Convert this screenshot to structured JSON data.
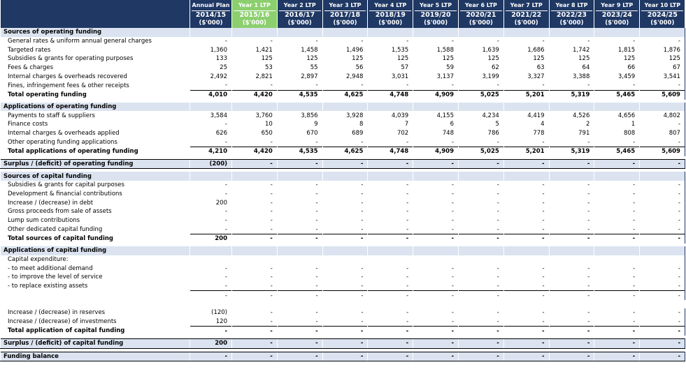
{
  "header": {
    "columns": [
      {
        "top": "Annual Plan",
        "year": "2014/15",
        "unit": "($'000)"
      },
      {
        "top": "Year 1 LTP",
        "year": "2015/16",
        "unit": "($'000)"
      },
      {
        "top": "Year 2 LTP",
        "year": "2016/17",
        "unit": "($'000)"
      },
      {
        "top": "Year 3 LTP",
        "year": "2017/18",
        "unit": "($'000)"
      },
      {
        "top": "Year 4 LTP",
        "year": "2018/19",
        "unit": "($'000)"
      },
      {
        "top": "Year 5 LTP",
        "year": "2019/20",
        "unit": "($'000)"
      },
      {
        "top": "Year 6 LTP",
        "year": "2020/21",
        "unit": "($'000)"
      },
      {
        "top": "Year 7 LTP",
        "year": "2021/22",
        "unit": "($'000)"
      },
      {
        "top": "Year 8 LTP",
        "year": "2022/23",
        "unit": "($'000)"
      },
      {
        "top": "Year 9 LTP",
        "year": "2023/24",
        "unit": "($'000)"
      },
      {
        "top": "Year 10 LTP",
        "year": "2024/25",
        "unit": "($'000)"
      }
    ]
  },
  "rows": [
    {
      "type": "section",
      "label": "Sources of operating funding"
    },
    {
      "type": "item",
      "label": "General rates & uniform annual general charges",
      "values": [
        "-",
        "-",
        "-",
        "-",
        "-",
        "-",
        "-",
        "-",
        "-",
        "-",
        "-"
      ]
    },
    {
      "type": "item",
      "label": "Targeted rates",
      "values": [
        "1,360",
        "1,421",
        "1,458",
        "1,496",
        "1,535",
        "1,588",
        "1,639",
        "1,686",
        "1,742",
        "1,815",
        "1,876"
      ]
    },
    {
      "type": "item",
      "label": "Subsidies & grants for operating purposes",
      "values": [
        "133",
        "125",
        "125",
        "125",
        "125",
        "125",
        "125",
        "125",
        "125",
        "125",
        "125"
      ]
    },
    {
      "type": "item",
      "label": "Fees & charges",
      "values": [
        "25",
        "53",
        "55",
        "56",
        "57",
        "59",
        "62",
        "63",
        "64",
        "66",
        "67"
      ]
    },
    {
      "type": "item",
      "label": "Internal charges & overheads recovered",
      "values": [
        "2,492",
        "2,821",
        "2,897",
        "2,948",
        "3,031",
        "3,137",
        "3,199",
        "3,327",
        "3,388",
        "3,459",
        "3,541"
      ]
    },
    {
      "type": "item",
      "label": "Fines, infringement fees & other receipts",
      "values": [
        "-",
        "-",
        "-",
        "-",
        "-",
        "-",
        "-",
        "-",
        "-",
        "-",
        "-"
      ]
    },
    {
      "type": "total",
      "label": "Total operating funding",
      "values": [
        "4,010",
        "4,420",
        "4,535",
        "4,625",
        "4,748",
        "4,909",
        "5,025",
        "5,201",
        "5,319",
        "5,465",
        "5,609"
      ]
    },
    {
      "type": "spacer"
    },
    {
      "type": "section",
      "label": "Applications of operating funding"
    },
    {
      "type": "item",
      "label": "Payments to staff & suppliers",
      "values": [
        "3,584",
        "3,760",
        "3,856",
        "3,928",
        "4,039",
        "4,155",
        "4,234",
        "4,419",
        "4,526",
        "4,656",
        "4,802"
      ]
    },
    {
      "type": "item",
      "label": "Finance costs",
      "values": [
        "-",
        "10",
        "9",
        "8",
        "7",
        "6",
        "5",
        "4",
        "2",
        "1",
        "-"
      ]
    },
    {
      "type": "item",
      "label": "Internal charges & overheads applied",
      "values": [
        "626",
        "650",
        "670",
        "689",
        "702",
        "748",
        "786",
        "778",
        "791",
        "808",
        "807"
      ]
    },
    {
      "type": "item",
      "label": "Other operating funding applications",
      "values": [
        "-",
        "-",
        "-",
        "-",
        "-",
        "-",
        "-",
        "-",
        "-",
        "-",
        "-"
      ]
    },
    {
      "type": "total",
      "label": "Total applications of operating funding",
      "values": [
        "4,210",
        "4,420",
        "4,535",
        "4,625",
        "4,748",
        "4,909",
        "5,025",
        "5,201",
        "5,319",
        "5,465",
        "5,609"
      ]
    },
    {
      "type": "spacer"
    },
    {
      "type": "surplus",
      "label": "Surplus / (deficit) of operating funding",
      "values": [
        "(200)",
        "-",
        "-",
        "-",
        "-",
        "-",
        "-",
        "-",
        "-",
        "-",
        "-"
      ]
    },
    {
      "type": "spacer"
    },
    {
      "type": "section",
      "label": "Sources of capital funding"
    },
    {
      "type": "item",
      "label": "Subsidies & grants for capital purposes",
      "values": [
        "-",
        "-",
        "-",
        "-",
        "-",
        "-",
        "-",
        "-",
        "-",
        "-",
        "-"
      ]
    },
    {
      "type": "item",
      "label": "Development & financial contributions",
      "values": [
        "-",
        "-",
        "-",
        "-",
        "-",
        "-",
        "-",
        "-",
        "-",
        "-",
        "-"
      ]
    },
    {
      "type": "item",
      "label": "Increase / (decrease) in debt",
      "values": [
        "200",
        "-",
        "-",
        "-",
        "-",
        "-",
        "-",
        "-",
        "-",
        "-",
        "-"
      ]
    },
    {
      "type": "item",
      "label": "Gross proceeds from sale of assets",
      "values": [
        "-",
        "-",
        "-",
        "-",
        "-",
        "-",
        "-",
        "-",
        "-",
        "-",
        "-"
      ]
    },
    {
      "type": "item",
      "label": "Lump sum contributions",
      "values": [
        "-",
        "-",
        "-",
        "-",
        "-",
        "-",
        "-",
        "-",
        "-",
        "-",
        "-"
      ]
    },
    {
      "type": "item",
      "label": "Other dedicated capital funding",
      "values": [
        "-",
        "-",
        "-",
        "-",
        "-",
        "-",
        "-",
        "-",
        "-",
        "-",
        "-"
      ]
    },
    {
      "type": "total",
      "label": "Total sources of capital funding",
      "values": [
        "200",
        "-",
        "-",
        "-",
        "-",
        "-",
        "-",
        "-",
        "-",
        "-",
        "-"
      ]
    },
    {
      "type": "spacer"
    },
    {
      "type": "section",
      "label": "Applications of capital funding"
    },
    {
      "type": "item",
      "label": "Capital expenditure:",
      "values": [
        "",
        "",
        "",
        "",
        "",
        "",
        "",
        "",
        "",
        "",
        ""
      ]
    },
    {
      "type": "item",
      "label": "- to meet additional demand",
      "values": [
        "-",
        "-",
        "-",
        "-",
        "-",
        "-",
        "-",
        "-",
        "-",
        "-",
        "-"
      ]
    },
    {
      "type": "item",
      "label": "- to improve the level of service",
      "values": [
        "-",
        "-",
        "-",
        "-",
        "-",
        "-",
        "-",
        "-",
        "-",
        "-",
        "-"
      ]
    },
    {
      "type": "item",
      "label": "- to replace existing assets",
      "values": [
        "-",
        "-",
        "-",
        "-",
        "-",
        "-",
        "-",
        "-",
        "-",
        "-",
        "-"
      ]
    },
    {
      "type": "subtotal",
      "label": "",
      "values": [
        "-",
        "-",
        "-",
        "-",
        "-",
        "-",
        "-",
        "-",
        "-",
        "-",
        "-"
      ]
    },
    {
      "type": "blank"
    },
    {
      "type": "item",
      "label": "Increase / (decrease) in reserves",
      "values": [
        "(120)",
        "-",
        "-",
        "-",
        "-",
        "-",
        "-",
        "-",
        "-",
        "-",
        "-"
      ]
    },
    {
      "type": "item",
      "label": "Increase / (decrease) of investments",
      "values": [
        "120",
        "-",
        "-",
        "-",
        "-",
        "-",
        "-",
        "-",
        "-",
        "-",
        "-"
      ]
    },
    {
      "type": "total",
      "label": "Total application of capital funding",
      "values": [
        "-",
        "-",
        "-",
        "-",
        "-",
        "-",
        "-",
        "-",
        "-",
        "-",
        "-"
      ]
    },
    {
      "type": "spacer"
    },
    {
      "type": "surplus",
      "label": "Surplus / (deficit) of capital funding",
      "values": [
        "200",
        "-",
        "-",
        "-",
        "-",
        "-",
        "-",
        "-",
        "-",
        "-",
        "-"
      ]
    },
    {
      "type": "spacer"
    },
    {
      "type": "surplus",
      "label": "Funding balance",
      "values": [
        "-",
        "-",
        "-",
        "-",
        "-",
        "-",
        "-",
        "-",
        "-",
        "-",
        "-"
      ]
    }
  ]
}
